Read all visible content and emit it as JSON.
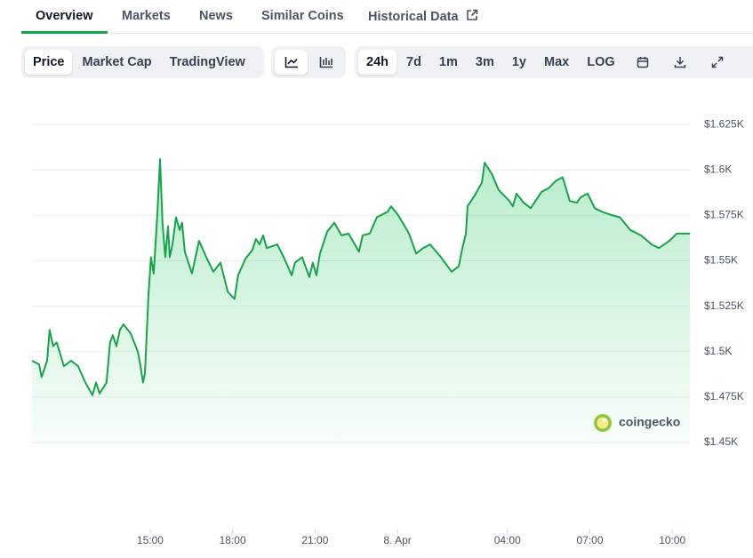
{
  "tabs": [
    "Overview",
    "Markets",
    "News",
    "Similar Coins",
    "Historical Data"
  ],
  "toolbar": {
    "chart_modes": [
      "Price",
      "Market Cap",
      "TradingView"
    ],
    "ranges": [
      "24h",
      "7d",
      "1m",
      "3m",
      "1y",
      "Max",
      "LOG"
    ]
  },
  "chart_data": {
    "type": "area",
    "color": "#17a34a",
    "grid": true,
    "watermark": "coingecko",
    "x": [
      10.7,
      10.96,
      11.05,
      11.25,
      11.34,
      11.47,
      11.6,
      11.86,
      12.12,
      12.38,
      12.64,
      12.9,
      13.03,
      13.16,
      13.41,
      13.54,
      13.64,
      13.77,
      13.9,
      14.03,
      14.29,
      14.55,
      14.64,
      14.74,
      14.81,
      14.94,
      15.03,
      15.13,
      15.26,
      15.36,
      15.45,
      15.55,
      15.65,
      15.71,
      15.81,
      15.94,
      16.07,
      16.16,
      16.26,
      16.39,
      16.52,
      16.78,
      17.04,
      17.3,
      17.56,
      17.82,
      18.07,
      18.2,
      18.46,
      18.72,
      18.85,
      18.98,
      19.11,
      19.24,
      19.63,
      19.89,
      20.15,
      20.27,
      20.53,
      20.79,
      20.92,
      21.05,
      21.18,
      21.44,
      21.7,
      21.96,
      22.22,
      22.6,
      22.73,
      22.99,
      23.25,
      23.64,
      23.77,
      24.03,
      24.42,
      24.68,
      24.93,
      25.19,
      25.58,
      25.97,
      26.23,
      26.36,
      26.49,
      26.55,
      26.81,
      27.07,
      27.17,
      27.43,
      27.68,
      28.07,
      28.2,
      28.33,
      28.59,
      28.85,
      29.24,
      29.5,
      29.76,
      30.01,
      30.27,
      30.53,
      30.66,
      30.92,
      31.18,
      31.44,
      31.83,
      32.09,
      32.47,
      32.86,
      33.25,
      33.51,
      33.9,
      34.16,
      34.42,
      34.64
    ],
    "values": [
      1495,
      1493,
      1486,
      1495,
      1512,
      1503,
      1505,
      1492,
      1495,
      1492,
      1483,
      1476,
      1483,
      1477,
      1483,
      1505,
      1509,
      1503,
      1512,
      1515,
      1510,
      1500,
      1493,
      1483,
      1488,
      1532,
      1552,
      1543,
      1576,
      1606,
      1571,
      1552,
      1569,
      1552,
      1559,
      1574,
      1567,
      1571,
      1555,
      1549,
      1543,
      1561,
      1552,
      1544,
      1549,
      1533,
      1529,
      1542,
      1551,
      1556,
      1562,
      1559,
      1564,
      1557,
      1559,
      1551,
      1542,
      1549,
      1552,
      1541,
      1549,
      1542,
      1554,
      1566,
      1571,
      1564,
      1565,
      1555,
      1564,
      1565,
      1574,
      1577,
      1580,
      1575,
      1565,
      1554,
      1557,
      1559,
      1552,
      1544,
      1547,
      1557,
      1565,
      1580,
      1586,
      1593,
      1604,
      1598,
      1589,
      1583,
      1580,
      1587,
      1582,
      1579,
      1588,
      1590,
      1594,
      1596,
      1583,
      1582,
      1585,
      1587,
      1579,
      1577,
      1575,
      1574,
      1567,
      1564,
      1559,
      1557,
      1561,
      1565,
      1565,
      1565
    ],
    "xlim": [
      10.7,
      34.64
    ],
    "xticks": [
      {
        "value": 15,
        "label": "15:00"
      },
      {
        "value": 18,
        "label": "18:00"
      },
      {
        "value": 21,
        "label": "21:00"
      },
      {
        "value": 24,
        "label": "8. Apr"
      },
      {
        "value": 28,
        "label": "04:00"
      },
      {
        "value": 31,
        "label": "07:00"
      },
      {
        "value": 34,
        "label": "10:00"
      }
    ],
    "ylim": [
      1449,
      1630
    ],
    "yticks": [
      {
        "value": 1450,
        "label": "$1.45K"
      },
      {
        "value": 1475,
        "label": "$1.475K"
      },
      {
        "value": 1500,
        "label": "$1.5K"
      },
      {
        "value": 1525,
        "label": "$1.525K"
      },
      {
        "value": 1550,
        "label": "$1.55K"
      },
      {
        "value": 1575,
        "label": "$1.575K"
      },
      {
        "value": 1600,
        "label": "$1.6K"
      },
      {
        "value": 1625,
        "label": "$1.625K"
      }
    ]
  }
}
